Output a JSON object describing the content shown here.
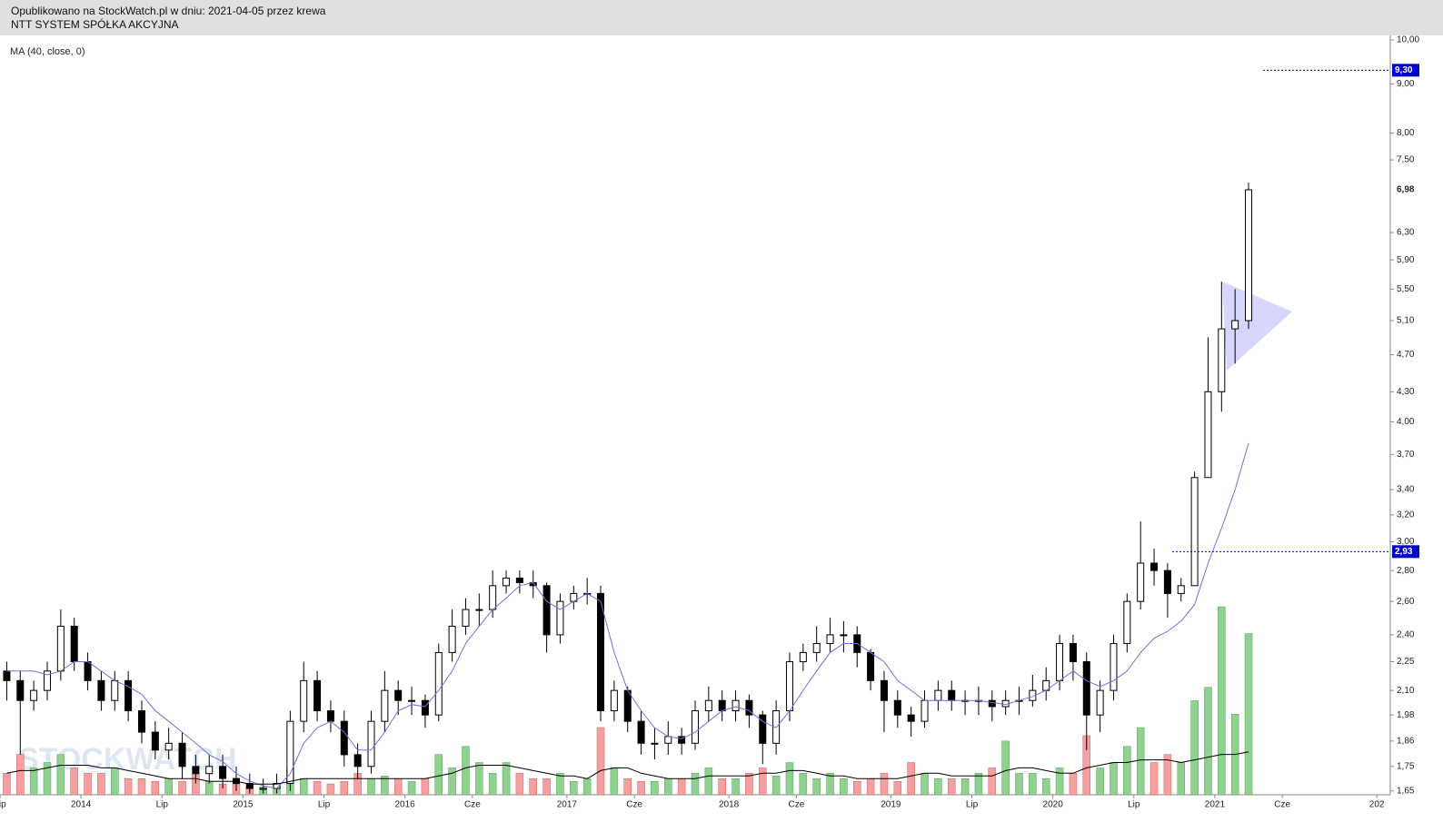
{
  "header": {
    "line1": "Opublikowano na StockWatch.pl w dniu: 2021-04-05 przez krewa",
    "line2": "NTT SYSTEM SPÓŁKA AKCYJNA"
  },
  "chart_data": {
    "type": "candlestick",
    "indicator_label": "MA (40, close, 0)",
    "watermark": "STOCKWATCH",
    "log_scale": true,
    "xlim": [
      "2013-07",
      "2022-02"
    ],
    "xticks": [
      {
        "value": "2013-07",
        "label": "Lip"
      },
      {
        "value": "2014-01",
        "label": "2014"
      },
      {
        "value": "2014-07",
        "label": "Lip"
      },
      {
        "value": "2015-01",
        "label": "2015"
      },
      {
        "value": "2015-07",
        "label": "Lip"
      },
      {
        "value": "2016-01",
        "label": "2016"
      },
      {
        "value": "2016-06",
        "label": "Cze"
      },
      {
        "value": "2017-01",
        "label": "2017"
      },
      {
        "value": "2017-06",
        "label": "Cze"
      },
      {
        "value": "2018-01",
        "label": "2018"
      },
      {
        "value": "2018-06",
        "label": "Cze"
      },
      {
        "value": "2019-01",
        "label": "2019"
      },
      {
        "value": "2019-07",
        "label": "Lip"
      },
      {
        "value": "2020-01",
        "label": "2020"
      },
      {
        "value": "2020-07",
        "label": "Lip"
      },
      {
        "value": "2021-01",
        "label": "2021"
      },
      {
        "value": "2021-06",
        "label": "Cze"
      },
      {
        "value": "2022-01",
        "label": "202"
      }
    ],
    "ylim": [
      1.635,
      10.11
    ],
    "yticks": [
      {
        "value": 10,
        "label": "10,00"
      },
      {
        "value": 9,
        "label": "9,00"
      },
      {
        "value": 8,
        "label": "8,00"
      },
      {
        "value": 7.5,
        "label": "7,50"
      },
      {
        "value": 6.3,
        "label": "6,30"
      },
      {
        "value": 5.9,
        "label": "5,90"
      },
      {
        "value": 5.5,
        "label": "5,50"
      },
      {
        "value": 5.1,
        "label": "5,10"
      },
      {
        "value": 4.7,
        "label": "4,70"
      },
      {
        "value": 4.3,
        "label": "4,30"
      },
      {
        "value": 4,
        "label": "4,00"
      },
      {
        "value": 3.7,
        "label": "3,70"
      },
      {
        "value": 3.4,
        "label": "3,40"
      },
      {
        "value": 3.2,
        "label": "3,20"
      },
      {
        "value": 3,
        "label": "3,00"
      },
      {
        "value": 2.8,
        "label": "2,80"
      },
      {
        "value": 2.6,
        "label": "2,60"
      },
      {
        "value": 2.4,
        "label": "2,40"
      },
      {
        "value": 2.25,
        "label": "2,25"
      },
      {
        "value": 2.1,
        "label": "2,10"
      },
      {
        "value": 1.98,
        "label": "1,98"
      },
      {
        "value": 1.86,
        "label": "1,86"
      },
      {
        "value": 1.75,
        "label": "1,75"
      },
      {
        "value": 1.65,
        "label": "1,65"
      }
    ],
    "last_price": {
      "value": 6.98,
      "label": "6,98"
    },
    "price_levels": [
      {
        "value": 9.3,
        "label": "9,30",
        "color": "#0000cc"
      },
      {
        "value": 2.93,
        "label": "2,93",
        "color": "#0000cc"
      }
    ],
    "up_color": "#ffffff",
    "down_color": "#000000",
    "volume_up_color": "#90d090",
    "volume_down_color": "#f4a0a0",
    "ma_color": "#7070e0",
    "volume_ma_color": "#000000",
    "x": [
      "2013-07",
      "2013-08",
      "2013-09",
      "2013-10",
      "2013-11",
      "2013-12",
      "2014-01",
      "2014-02",
      "2014-03",
      "2014-04",
      "2014-05",
      "2014-06",
      "2014-07",
      "2014-08",
      "2014-09",
      "2014-10",
      "2014-11",
      "2014-12",
      "2015-01",
      "2015-02",
      "2015-03",
      "2015-04",
      "2015-05",
      "2015-06",
      "2015-07",
      "2015-08",
      "2015-09",
      "2015-10",
      "2015-11",
      "2015-12",
      "2016-01",
      "2016-02",
      "2016-03",
      "2016-04",
      "2016-05",
      "2016-06",
      "2016-07",
      "2016-08",
      "2016-09",
      "2016-10",
      "2016-11",
      "2016-12",
      "2017-01",
      "2017-02",
      "2017-03",
      "2017-04",
      "2017-05",
      "2017-06",
      "2017-07",
      "2017-08",
      "2017-09",
      "2017-10",
      "2017-11",
      "2017-12",
      "2018-01",
      "2018-02",
      "2018-03",
      "2018-04",
      "2018-05",
      "2018-06",
      "2018-07",
      "2018-08",
      "2018-09",
      "2018-10",
      "2018-11",
      "2018-12",
      "2019-01",
      "2019-02",
      "2019-03",
      "2019-04",
      "2019-05",
      "2019-06",
      "2019-07",
      "2019-08",
      "2019-09",
      "2019-10",
      "2019-11",
      "2019-12",
      "2020-01",
      "2020-02",
      "2020-03",
      "2020-04",
      "2020-05",
      "2020-06",
      "2020-07",
      "2020-08",
      "2020-09",
      "2020-10",
      "2020-11",
      "2020-12",
      "2021-01",
      "2021-02",
      "2021-03"
    ],
    "open": [
      2.2,
      2.15,
      2.05,
      2.1,
      2.2,
      2.45,
      2.25,
      2.15,
      2.05,
      2.15,
      2.0,
      1.9,
      1.82,
      1.85,
      1.75,
      1.72,
      1.75,
      1.7,
      1.68,
      1.66,
      1.66,
      1.68,
      1.95,
      2.15,
      2.0,
      1.95,
      1.8,
      1.75,
      1.95,
      2.1,
      2.05,
      2.05,
      1.98,
      2.3,
      2.45,
      2.55,
      2.55,
      2.7,
      2.75,
      2.72,
      2.7,
      2.4,
      2.6,
      2.65,
      2.65,
      2.0,
      2.1,
      1.95,
      1.85,
      1.85,
      1.88,
      1.85,
      2.0,
      2.05,
      2.0,
      2.05,
      1.98,
      1.85,
      2.0,
      2.25,
      2.3,
      2.35,
      2.4,
      2.4,
      2.3,
      2.15,
      2.05,
      1.98,
      1.95,
      2.05,
      2.1,
      2.05,
      2.05,
      2.05,
      2.02,
      2.05,
      2.05,
      2.1,
      2.15,
      2.35,
      2.25,
      1.98,
      2.1,
      2.35,
      2.6,
      2.85,
      2.8,
      2.65,
      2.7,
      3.5,
      4.3,
      5.0,
      5.1
    ],
    "high": [
      2.25,
      2.2,
      2.15,
      2.25,
      2.55,
      2.5,
      2.3,
      2.2,
      2.2,
      2.2,
      2.05,
      1.95,
      1.92,
      1.9,
      1.8,
      1.8,
      1.8,
      1.75,
      1.72,
      1.7,
      1.72,
      2.0,
      2.25,
      2.2,
      2.05,
      2.0,
      1.85,
      2.0,
      2.2,
      2.15,
      2.12,
      2.08,
      2.35,
      2.55,
      2.62,
      2.65,
      2.8,
      2.8,
      2.8,
      2.8,
      2.72,
      2.65,
      2.7,
      2.75,
      2.7,
      2.15,
      2.12,
      2.0,
      1.92,
      1.95,
      1.92,
      2.05,
      2.12,
      2.1,
      2.1,
      2.08,
      2.0,
      2.05,
      2.3,
      2.35,
      2.45,
      2.5,
      2.48,
      2.45,
      2.32,
      2.2,
      2.1,
      2.02,
      2.1,
      2.15,
      2.15,
      2.1,
      2.12,
      2.1,
      2.1,
      2.12,
      2.18,
      2.22,
      2.4,
      2.4,
      2.3,
      2.15,
      2.4,
      2.65,
      3.15,
      2.95,
      2.85,
      2.75,
      3.55,
      4.9,
      5.6,
      5.5,
      7.1
    ],
    "low": [
      2.05,
      1.8,
      2.0,
      2.05,
      2.15,
      2.2,
      2.1,
      2.0,
      2.0,
      1.95,
      1.85,
      1.78,
      1.78,
      1.7,
      1.68,
      1.68,
      1.66,
      1.65,
      1.64,
      1.64,
      1.64,
      1.65,
      1.9,
      1.95,
      1.9,
      1.75,
      1.7,
      1.72,
      1.9,
      1.98,
      1.98,
      1.92,
      1.95,
      2.25,
      2.4,
      2.45,
      2.5,
      2.65,
      2.65,
      2.62,
      2.3,
      2.35,
      2.55,
      2.58,
      1.95,
      1.95,
      1.9,
      1.8,
      1.78,
      1.8,
      1.8,
      1.82,
      1.95,
      1.95,
      1.95,
      1.92,
      1.76,
      1.8,
      1.95,
      2.2,
      2.25,
      2.3,
      2.3,
      2.22,
      2.1,
      1.9,
      1.92,
      1.88,
      1.92,
      2.0,
      2.0,
      1.98,
      1.98,
      1.95,
      1.98,
      1.98,
      2.02,
      2.05,
      2.1,
      2.15,
      1.82,
      1.9,
      2.05,
      2.3,
      2.55,
      2.7,
      2.5,
      2.6,
      2.7,
      3.5,
      4.1,
      4.6,
      5.0
    ],
    "close": [
      2.15,
      2.05,
      2.1,
      2.2,
      2.45,
      2.25,
      2.15,
      2.05,
      2.15,
      2.0,
      1.9,
      1.82,
      1.85,
      1.75,
      1.72,
      1.75,
      1.7,
      1.68,
      1.66,
      1.66,
      1.68,
      1.95,
      2.15,
      2.0,
      1.95,
      1.8,
      1.75,
      1.95,
      2.1,
      2.05,
      2.05,
      1.98,
      2.3,
      2.45,
      2.55,
      2.55,
      2.7,
      2.75,
      2.72,
      2.7,
      2.4,
      2.6,
      2.65,
      2.65,
      2.0,
      2.1,
      1.95,
      1.85,
      1.85,
      1.88,
      1.85,
      2.0,
      2.05,
      2.0,
      2.05,
      1.98,
      1.85,
      2.0,
      2.25,
      2.3,
      2.35,
      2.4,
      2.4,
      2.3,
      2.15,
      2.05,
      1.98,
      1.95,
      2.05,
      2.1,
      2.05,
      2.05,
      2.05,
      2.02,
      2.05,
      2.05,
      2.1,
      2.15,
      2.35,
      2.25,
      1.98,
      2.1,
      2.35,
      2.6,
      2.85,
      2.8,
      2.65,
      2.7,
      3.5,
      4.3,
      5.0,
      5.1,
      6.98
    ],
    "ma": [
      2.2,
      2.2,
      2.2,
      2.18,
      2.2,
      2.25,
      2.25,
      2.2,
      2.15,
      2.12,
      2.08,
      2.0,
      1.95,
      1.9,
      1.85,
      1.8,
      1.77,
      1.72,
      1.69,
      1.67,
      1.66,
      1.72,
      1.85,
      1.92,
      1.95,
      1.9,
      1.82,
      1.82,
      1.9,
      2.0,
      2.03,
      2.02,
      2.1,
      2.2,
      2.35,
      2.45,
      2.55,
      2.62,
      2.7,
      2.72,
      2.6,
      2.55,
      2.6,
      2.65,
      2.6,
      2.3,
      2.1,
      2.0,
      1.92,
      1.88,
      1.87,
      1.9,
      1.95,
      2.0,
      2.02,
      2.0,
      1.95,
      1.92,
      2.0,
      2.1,
      2.2,
      2.3,
      2.35,
      2.35,
      2.3,
      2.25,
      2.15,
      2.1,
      2.05,
      2.05,
      2.05,
      2.05,
      2.05,
      2.04,
      2.03,
      2.05,
      2.07,
      2.1,
      2.15,
      2.2,
      2.15,
      2.12,
      2.15,
      2.2,
      2.3,
      2.38,
      2.42,
      2.48,
      2.58,
      2.85,
      3.1,
      3.4,
      3.8
    ],
    "volume": [
      8,
      15,
      10,
      12,
      15,
      10,
      8,
      8,
      10,
      6,
      6,
      5,
      6,
      5,
      8,
      5,
      4,
      4,
      3,
      3,
      4,
      10,
      6,
      5,
      4,
      5,
      8,
      6,
      7,
      6,
      5,
      6,
      15,
      10,
      18,
      12,
      8,
      12,
      8,
      6,
      6,
      8,
      5,
      6,
      25,
      10,
      6,
      5,
      5,
      6,
      6,
      8,
      10,
      6,
      6,
      8,
      10,
      7,
      12,
      8,
      6,
      8,
      6,
      5,
      6,
      8,
      5,
      12,
      8,
      6,
      6,
      6,
      8,
      10,
      20,
      8,
      8,
      6,
      10,
      8,
      22,
      10,
      12,
      18,
      25,
      12,
      15,
      12,
      35,
      40,
      70,
      30,
      60
    ],
    "volume_ma": [
      8,
      9,
      9,
      10,
      11,
      11,
      11,
      10,
      10,
      9,
      8,
      7,
      6,
      6,
      6,
      5,
      5,
      5,
      4,
      4,
      4,
      5,
      6,
      6,
      6,
      6,
      6,
      6,
      6,
      6,
      6,
      6,
      7,
      8,
      10,
      11,
      11,
      11,
      10,
      9,
      8,
      7,
      7,
      6,
      9,
      10,
      10,
      8,
      7,
      6,
      6,
      6,
      7,
      7,
      7,
      7,
      8,
      8,
      9,
      9,
      8,
      7,
      7,
      6,
      6,
      6,
      6,
      7,
      8,
      8,
      7,
      7,
      7,
      7,
      9,
      10,
      10,
      9,
      8,
      8,
      10,
      11,
      12,
      12,
      13,
      13,
      13,
      12,
      13,
      14,
      15,
      15,
      16
    ]
  }
}
